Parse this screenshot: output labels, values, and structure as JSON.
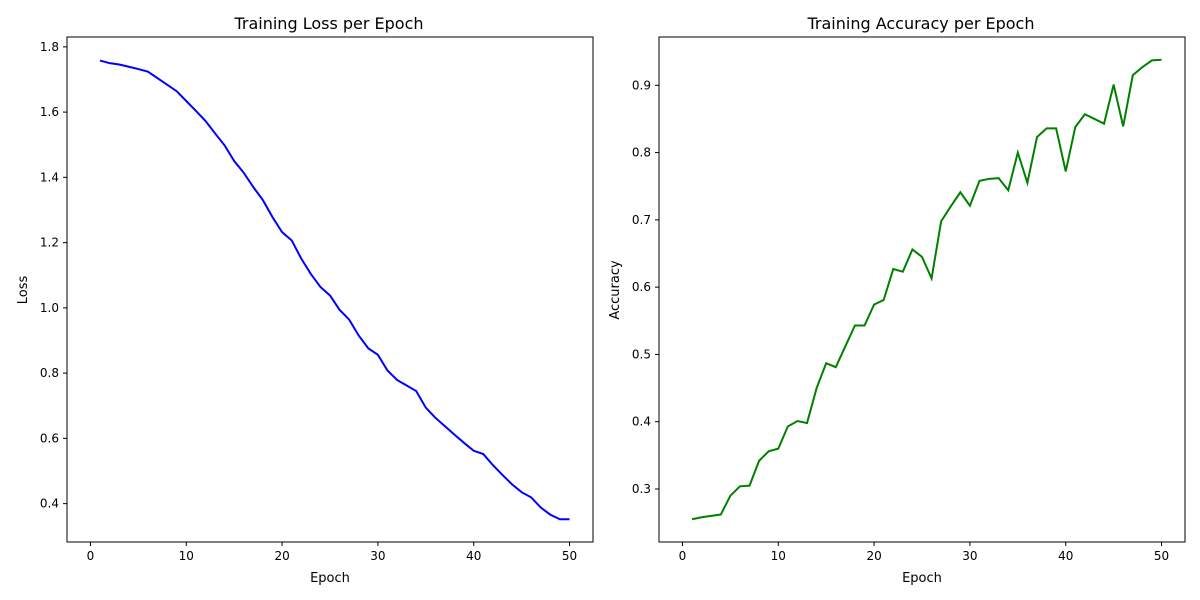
{
  "chart_data": [
    {
      "type": "line",
      "title": "Training Loss per Epoch",
      "xlabel": "Epoch",
      "ylabel": "Loss",
      "color": "#0000ff",
      "xlim": [
        -2.45,
        52.45
      ],
      "ylim": [
        0.2824,
        1.8302
      ],
      "xticks": [
        0,
        10,
        20,
        30,
        40,
        50
      ],
      "xtick_labels": [
        "0",
        "10",
        "20",
        "30",
        "40",
        "50"
      ],
      "yticks": [
        0.4,
        0.6,
        0.8,
        1.0,
        1.2,
        1.4,
        1.6,
        1.8
      ],
      "ytick_labels": [
        "0.4",
        "0.6",
        "0.8",
        "1.0",
        "1.2",
        "1.4",
        "1.6",
        "1.8"
      ],
      "x": [
        1,
        2,
        3,
        4,
        5,
        6,
        7,
        8,
        9,
        10,
        11,
        12,
        13,
        14,
        15,
        16,
        17,
        18,
        19,
        20,
        21,
        22,
        23,
        24,
        25,
        26,
        27,
        28,
        29,
        30,
        31,
        32,
        33,
        34,
        35,
        36,
        37,
        38,
        39,
        40,
        41,
        42,
        43,
        44,
        45,
        46,
        47,
        48,
        49,
        50
      ],
      "series": [
        {
          "name": "Loss",
          "values": [
            1.758,
            1.75,
            1.746,
            1.739,
            1.732,
            1.724,
            1.704,
            1.684,
            1.664,
            1.634,
            1.604,
            1.573,
            1.535,
            1.498,
            1.45,
            1.414,
            1.37,
            1.33,
            1.278,
            1.232,
            1.207,
            1.151,
            1.104,
            1.064,
            1.038,
            0.994,
            0.964,
            0.915,
            0.876,
            0.856,
            0.808,
            0.779,
            0.762,
            0.745,
            0.694,
            0.663,
            0.637,
            0.611,
            0.586,
            0.562,
            0.552,
            0.518,
            0.488,
            0.459,
            0.435,
            0.419,
            0.388,
            0.366,
            0.352,
            0.352
          ]
        }
      ]
    },
    {
      "type": "line",
      "title": "Training Accuracy per Epoch",
      "xlabel": "Epoch",
      "ylabel": "Accuracy",
      "color": "#008000",
      "xlim": [
        -2.45,
        52.45
      ],
      "ylim": [
        0.2212,
        0.9718
      ],
      "xticks": [
        0,
        10,
        20,
        30,
        40,
        50
      ],
      "xtick_labels": [
        "0",
        "10",
        "20",
        "30",
        "40",
        "50"
      ],
      "yticks": [
        0.3,
        0.4,
        0.5,
        0.6,
        0.7,
        0.8,
        0.9
      ],
      "ytick_labels": [
        "0.3",
        "0.4",
        "0.5",
        "0.6",
        "0.7",
        "0.8",
        "0.9"
      ],
      "x": [
        1,
        2,
        3,
        4,
        5,
        6,
        7,
        8,
        9,
        10,
        11,
        12,
        13,
        14,
        15,
        16,
        17,
        18,
        19,
        20,
        21,
        22,
        23,
        24,
        25,
        26,
        27,
        28,
        29,
        30,
        31,
        32,
        33,
        34,
        35,
        36,
        37,
        38,
        39,
        40,
        41,
        42,
        43,
        44,
        45,
        46,
        47,
        48,
        49,
        50
      ],
      "series": [
        {
          "name": "Accuracy",
          "values": [
            0.255,
            0.258,
            0.26,
            0.262,
            0.29,
            0.304,
            0.305,
            0.342,
            0.356,
            0.36,
            0.393,
            0.401,
            0.398,
            0.45,
            0.487,
            0.481,
            0.512,
            0.543,
            0.543,
            0.574,
            0.581,
            0.627,
            0.623,
            0.656,
            0.645,
            0.613,
            0.698,
            0.72,
            0.741,
            0.721,
            0.758,
            0.761,
            0.762,
            0.744,
            0.8,
            0.755,
            0.823,
            0.836,
            0.836,
            0.772,
            0.838,
            0.857,
            0.85,
            0.843,
            0.901,
            0.839,
            0.915,
            0.927,
            0.937,
            0.938
          ]
        }
      ]
    }
  ]
}
